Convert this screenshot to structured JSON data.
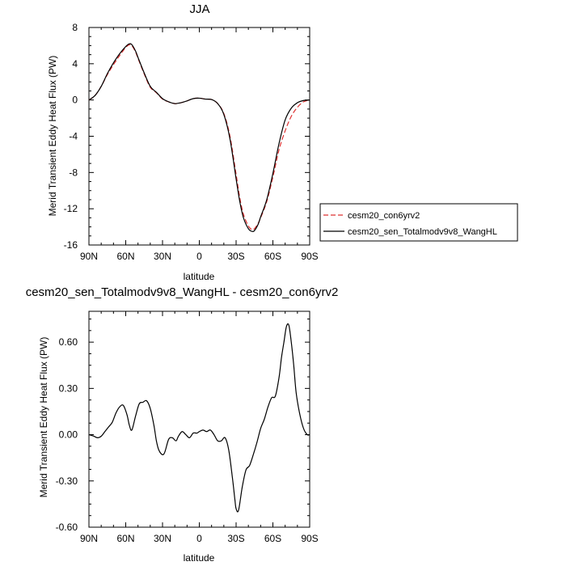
{
  "chart_data": [
    {
      "type": "line",
      "title": "JJA",
      "xlabel": "latitude",
      "ylabel": "Merid Transient Eddy Heat Flux (PW)",
      "xlim": [
        90,
        -90
      ],
      "ylim": [
        -16,
        8
      ],
      "x_ticks": [
        90,
        60,
        30,
        0,
        -30,
        -60,
        -90
      ],
      "x_tick_labels": [
        "90N",
        "60N",
        "30N",
        "0",
        "30S",
        "60S",
        "90S"
      ],
      "y_ticks": [
        -16,
        -12,
        -8,
        -4,
        0,
        4,
        8
      ],
      "y_tick_labels": [
        "-16",
        "-12",
        "-8",
        "-4",
        "0",
        "4",
        "8"
      ],
      "grid": false,
      "legend_position": "right, outside plot",
      "series": [
        {
          "name": "cesm20_con6yrv2",
          "color": "#dd3030",
          "dash": "dashed",
          "x": [
            90,
            85,
            80,
            75,
            70,
            65,
            60,
            57,
            55,
            52,
            50,
            45,
            40,
            35,
            30,
            25,
            20,
            17,
            15,
            10,
            5,
            0,
            -5,
            -10,
            -15,
            -20,
            -25,
            -30,
            -33,
            -36,
            -40,
            -43,
            -45,
            -48,
            -50,
            -55,
            -60,
            -65,
            -70,
            -75,
            -80,
            -85,
            -90
          ],
          "y": [
            0,
            0.5,
            1.5,
            2.8,
            3.9,
            4.9,
            5.8,
            6.1,
            6.0,
            5.3,
            4.6,
            2.9,
            1.4,
            0.8,
            0.1,
            -0.2,
            -0.4,
            -0.35,
            -0.3,
            -0.1,
            0.15,
            0.2,
            0.1,
            0.05,
            -0.4,
            -1.5,
            -4.0,
            -8.2,
            -10.8,
            -12.6,
            -13.9,
            -14.3,
            -14.2,
            -13.6,
            -13.0,
            -11.2,
            -8.5,
            -5.5,
            -3.4,
            -1.8,
            -0.8,
            -0.2,
            0
          ]
        },
        {
          "name": "cesm20_sen_Totalmodv9v8_WangHL",
          "color": "#000000",
          "dash": "solid",
          "x": [
            90,
            85,
            80,
            75,
            70,
            65,
            60,
            57,
            55,
            52,
            50,
            45,
            40,
            35,
            30,
            25,
            20,
            17,
            15,
            10,
            5,
            0,
            -5,
            -10,
            -15,
            -20,
            -25,
            -30,
            -33,
            -36,
            -40,
            -43,
            -45,
            -48,
            -50,
            -55,
            -60,
            -65,
            -70,
            -75,
            -80,
            -85,
            -90
          ],
          "y": [
            0,
            0.5,
            1.5,
            2.9,
            4.1,
            5.1,
            5.9,
            6.2,
            6.1,
            5.4,
            4.7,
            3.0,
            1.5,
            0.85,
            0.15,
            -0.2,
            -0.4,
            -0.35,
            -0.3,
            -0.1,
            0.15,
            0.2,
            0.1,
            0.05,
            -0.4,
            -1.6,
            -4.3,
            -8.7,
            -11.2,
            -13.0,
            -14.2,
            -14.5,
            -14.4,
            -13.7,
            -12.9,
            -11.0,
            -8.1,
            -4.8,
            -2.2,
            -0.9,
            -0.3,
            -0.05,
            0
          ]
        }
      ]
    },
    {
      "type": "line",
      "title": "cesm20_sen_Totalmodv9v8_WangHL - cesm20_con6yrv2",
      "xlabel": "latitude",
      "ylabel": "Merid Transient Eddy Heat Flux (PW)",
      "xlim": [
        90,
        -90
      ],
      "ylim": [
        -0.6,
        0.8
      ],
      "x_ticks": [
        90,
        60,
        30,
        0,
        -30,
        -60,
        -90
      ],
      "x_tick_labels": [
        "90N",
        "60N",
        "30N",
        "0",
        "30S",
        "60S",
        "90S"
      ],
      "y_ticks": [
        -0.6,
        -0.3,
        0.0,
        0.3,
        0.6
      ],
      "y_tick_labels": [
        "-0.60",
        "-0.30",
        "0.00",
        "0.30",
        "0.60"
      ],
      "grid": false,
      "series": [
        {
          "color": "#000000",
          "dash": "solid",
          "x": [
            90,
            86,
            83,
            80,
            77,
            74,
            71,
            68,
            65,
            62,
            59,
            57,
            55,
            52,
            49,
            46,
            43,
            40,
            37,
            35,
            33,
            30,
            28,
            25,
            22,
            19,
            17,
            14,
            11,
            8,
            5,
            2,
            0,
            -3,
            -6,
            -9,
            -12,
            -15,
            -18,
            -21,
            -24,
            -27,
            -29,
            -30,
            -32,
            -35,
            -38,
            -41,
            -44,
            -47,
            -50,
            -53,
            -56,
            -59,
            -62,
            -65,
            -67,
            -69,
            -71,
            -73,
            -75,
            -77,
            -79,
            -82,
            -85,
            -88,
            -90
          ],
          "y": [
            0,
            -0.01,
            -0.02,
            -0.01,
            0.02,
            0.05,
            0.08,
            0.14,
            0.18,
            0.19,
            0.13,
            0.06,
            0.03,
            0.12,
            0.2,
            0.21,
            0.22,
            0.17,
            0.06,
            -0.04,
            -0.1,
            -0.13,
            -0.11,
            -0.03,
            -0.02,
            -0.04,
            -0.01,
            0.02,
            0.0,
            -0.02,
            0.01,
            0.01,
            0.02,
            0.03,
            0.02,
            0.03,
            0.0,
            -0.04,
            -0.04,
            -0.02,
            -0.1,
            -0.28,
            -0.42,
            -0.48,
            -0.49,
            -0.34,
            -0.23,
            -0.2,
            -0.13,
            -0.05,
            0.04,
            0.1,
            0.18,
            0.24,
            0.25,
            0.37,
            0.5,
            0.6,
            0.7,
            0.71,
            0.6,
            0.45,
            0.27,
            0.13,
            0.04,
            0.0,
            0.0
          ]
        }
      ]
    }
  ]
}
